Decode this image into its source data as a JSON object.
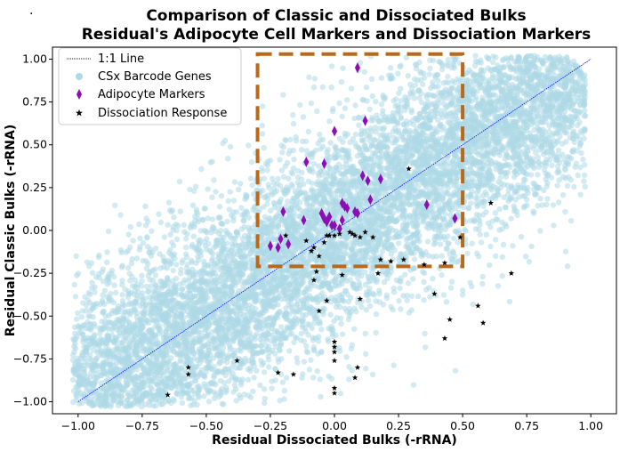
{
  "chart_data": {
    "type": "scatter",
    "title": [
      "Comparison of Classic and Dissociated Bulks",
      "Residual's Adipocyte Cell Markers and Dissociation Markers"
    ],
    "xlabel": "Residual Dissociated Bulks (-rRNA)",
    "ylabel": "Residual Classic Bulks (-rRNA)",
    "xlim": [
      -1.1,
      1.1
    ],
    "ylim": [
      -1.07,
      1.07
    ],
    "xticks": [
      "−1.00",
      "−0.75",
      "−0.50",
      "−0.25",
      "0.00",
      "0.25",
      "0.50",
      "0.75",
      "1.00"
    ],
    "yticks": [
      "1.00",
      "0.75",
      "0.50",
      "0.25",
      "0.00",
      "−0.25",
      "−0.50",
      "−0.75",
      "−1.00"
    ],
    "grid": false,
    "legend_position": "top-left",
    "legend": [
      "1:1 Line",
      "CSx Barcode Genes",
      "Adipocyte Markers",
      "Dissociation Response"
    ],
    "colors": {
      "barcode": "#add8e6",
      "adipocyte": "#8b0fb5",
      "dissociation": "#000000",
      "line": "#0000ff",
      "box": "#b8691b"
    },
    "highlight_box": {
      "x": [
        -0.3,
        0.5
      ],
      "y": [
        -0.21,
        1.03
      ]
    },
    "series": [
      {
        "name": "1:1 Line",
        "type": "line",
        "x": [
          -1.0,
          1.0
        ],
        "y": [
          -1.0,
          1.0
        ]
      },
      {
        "name": "CSx Barcode Genes",
        "type": "scatter",
        "density_cloud": {
          "axis": [
            [
              -1.0,
              -1.0
            ],
            [
              1.0,
              1.0
            ]
          ],
          "extent": [
            -1.0,
            0.95
          ],
          "spread": 0.22,
          "approx_points": 9000
        }
      },
      {
        "name": "Adipocyte Markers",
        "type": "scatter",
        "x": [
          0.09,
          0.12,
          0.0,
          -0.11,
          -0.04,
          0.11,
          0.13,
          0.18,
          0.14,
          -0.2,
          -0.05,
          -0.12,
          -0.02,
          0.04,
          0.03,
          0.05,
          0.08,
          0.09,
          -0.03,
          -0.01,
          -0.04,
          0.0,
          0.02,
          0.03,
          0.36,
          0.47,
          -0.25,
          -0.21,
          -0.22,
          -0.18
        ],
        "y": [
          0.95,
          0.64,
          0.58,
          0.4,
          0.39,
          0.32,
          0.29,
          0.3,
          0.18,
          0.11,
          0.1,
          0.06,
          0.08,
          0.14,
          0.16,
          0.13,
          0.11,
          0.1,
          0.05,
          0.03,
          0.07,
          0.03,
          0.01,
          0.06,
          0.15,
          0.07,
          -0.09,
          -0.05,
          -0.1,
          -0.08
        ]
      },
      {
        "name": "Dissociation Response",
        "type": "scatter",
        "x": [
          0.29,
          0.61,
          0.49,
          -0.19,
          -0.11,
          -0.08,
          -0.09,
          -0.03,
          -0.02,
          0.0,
          0.02,
          0.06,
          0.07,
          0.08,
          0.1,
          0.12,
          0.15,
          0.18,
          0.22,
          0.27,
          0.35,
          0.43,
          -0.04,
          -0.06,
          -0.07,
          -0.08,
          0.03,
          0.17,
          -0.03,
          0.1,
          0.39,
          0.69,
          0.45,
          0.56,
          0.58,
          0.43,
          -0.06,
          -0.38,
          -0.57,
          -0.57,
          -0.65,
          -0.22,
          -0.16,
          0.0,
          0.0,
          0.0,
          0.0,
          0.0,
          0.0,
          0.09,
          0.08
        ],
        "y": [
          0.36,
          0.16,
          -0.04,
          -0.03,
          -0.06,
          -0.1,
          -0.12,
          -0.03,
          -0.03,
          -0.03,
          -0.02,
          -0.01,
          -0.02,
          -0.03,
          -0.04,
          -0.01,
          -0.04,
          -0.17,
          -0.18,
          -0.17,
          -0.2,
          -0.19,
          -0.07,
          -0.15,
          -0.24,
          -0.29,
          -0.26,
          -0.25,
          -0.41,
          -0.4,
          -0.37,
          -0.25,
          -0.52,
          -0.44,
          -0.54,
          -0.63,
          -0.47,
          -0.76,
          -0.8,
          -0.84,
          -0.96,
          -0.83,
          -0.84,
          -0.65,
          -0.68,
          -0.71,
          -0.76,
          -0.92,
          -0.95,
          -0.8,
          -0.86
        ]
      }
    ]
  }
}
